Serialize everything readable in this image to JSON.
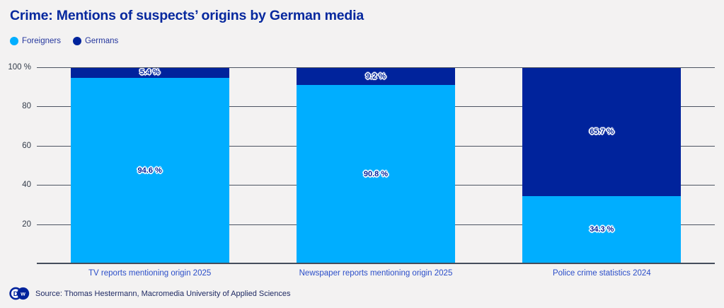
{
  "title": "Crime: Mentions of suspects’ origins by German media",
  "legend": {
    "items": [
      {
        "label": "Foreigners",
        "color": "#00aeff"
      },
      {
        "label": "Germans",
        "color": "#00239c"
      }
    ]
  },
  "chart_data": {
    "type": "bar",
    "stacked": true,
    "orientation": "vertical",
    "categories": [
      "TV reports mentioning origin 2025",
      "Newspaper reports mentioning origin 2025",
      "Police crime statistics 2024"
    ],
    "series": [
      {
        "name": "Foreigners",
        "color": "#00aeff",
        "values": [
          94.6,
          90.8,
          34.3
        ],
        "labels": [
          "94.6 %",
          "90.8 %",
          "34.3 %"
        ]
      },
      {
        "name": "Germans",
        "color": "#00239c",
        "values": [
          5.4,
          9.2,
          65.7
        ],
        "labels": [
          "5.4 %",
          "9.2 %",
          "65.7 %"
        ]
      }
    ],
    "ylim": [
      0,
      100
    ],
    "yticks": [
      {
        "pct": 100,
        "label": "100 %"
      },
      {
        "pct": 80,
        "label": "80"
      },
      {
        "pct": 60,
        "label": "60"
      },
      {
        "pct": 40,
        "label": "40"
      },
      {
        "pct": 20,
        "label": "20"
      }
    ],
    "grid": true,
    "legend_position": "top-left"
  },
  "colors": {
    "background": "#f3f2f2",
    "title": "#06289e",
    "gridline": "#4c5462",
    "axis": "#454e5c",
    "tick_label": "#323b49",
    "category_label": "#2b4ec9",
    "bar_label": "#00239c"
  },
  "footer": {
    "logo": "DW",
    "source": "Source: Thomas Hestermann, Macromedia University of Applied Sciences"
  }
}
